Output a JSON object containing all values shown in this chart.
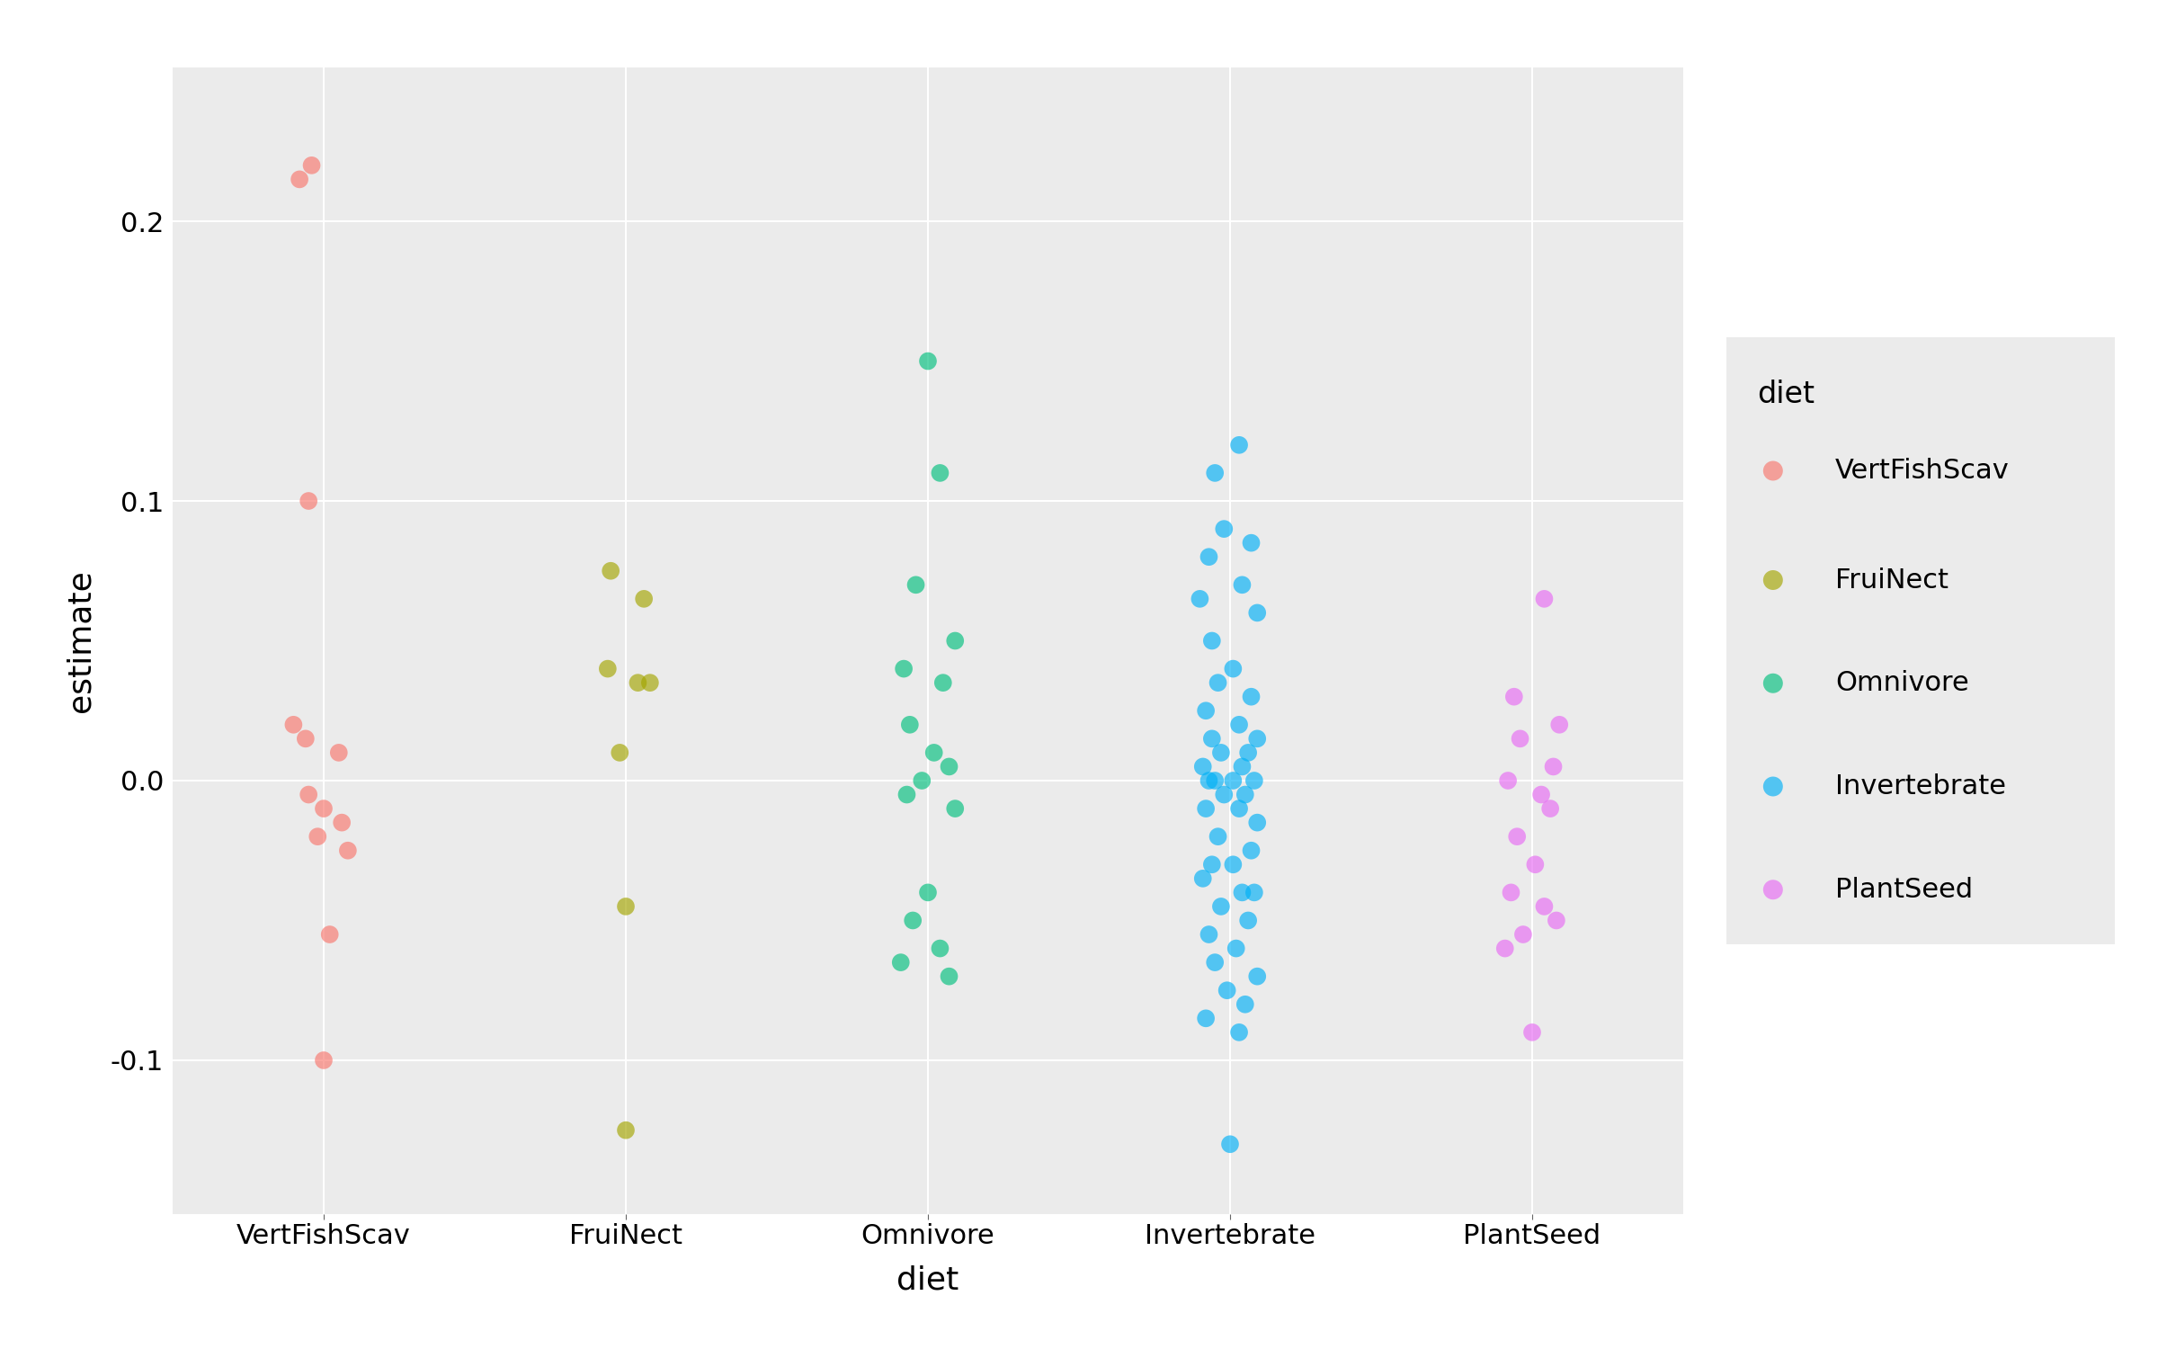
{
  "title": "",
  "xlabel": "diet",
  "ylabel": "estimate",
  "background_color": "#EBEBEB",
  "grid_color": "#FFFFFF",
  "categories": [
    "VertFishScav",
    "FruiNect",
    "Omnivore",
    "Invertebrate",
    "PlantSeed"
  ],
  "colors": {
    "VertFishScav": "#F8766D",
    "FruiNect": "#A3A500",
    "Omnivore": "#00BF7D",
    "Invertebrate": "#00B0F6",
    "PlantSeed": "#E76BF3"
  },
  "alpha": 0.65,
  "marker_size": 200,
  "ylim": [
    -0.155,
    0.255
  ],
  "yticks": [
    -0.1,
    0.0,
    0.1,
    0.2
  ],
  "points": {
    "VertFishScav": [
      0.215,
      0.22,
      0.1,
      0.02,
      0.015,
      0.01,
      -0.005,
      -0.01,
      -0.015,
      -0.02,
      -0.025,
      -0.055,
      -0.1
    ],
    "FruiNect": [
      0.075,
      0.065,
      0.04,
      0.035,
      0.035,
      0.01,
      -0.045,
      -0.125
    ],
    "Omnivore": [
      0.15,
      0.11,
      0.07,
      0.05,
      0.04,
      0.035,
      0.02,
      0.01,
      0.005,
      0.0,
      -0.005,
      -0.01,
      -0.04,
      -0.05,
      -0.06,
      -0.065,
      -0.07
    ],
    "Invertebrate": [
      0.12,
      0.11,
      0.09,
      0.085,
      0.08,
      0.07,
      0.065,
      0.06,
      0.05,
      0.04,
      0.035,
      0.03,
      0.025,
      0.02,
      0.015,
      0.015,
      0.01,
      0.01,
      0.005,
      0.005,
      0.0,
      0.0,
      0.0,
      0.0,
      -0.005,
      -0.005,
      -0.01,
      -0.01,
      -0.015,
      -0.02,
      -0.025,
      -0.03,
      -0.03,
      -0.035,
      -0.04,
      -0.04,
      -0.045,
      -0.05,
      -0.055,
      -0.06,
      -0.065,
      -0.07,
      -0.075,
      -0.08,
      -0.085,
      -0.09,
      -0.13
    ],
    "PlantSeed": [
      0.065,
      0.03,
      0.02,
      0.015,
      0.005,
      0.0,
      -0.005,
      -0.01,
      -0.02,
      -0.03,
      -0.04,
      -0.045,
      -0.05,
      -0.055,
      -0.06,
      -0.09
    ]
  },
  "jitter": {
    "VertFishScav": [
      -0.08,
      -0.04,
      -0.05,
      -0.1,
      -0.06,
      0.05,
      -0.05,
      0.0,
      0.06,
      -0.02,
      0.08,
      0.02,
      0.0
    ],
    "FruiNect": [
      -0.05,
      0.06,
      -0.06,
      0.04,
      0.08,
      -0.02,
      0.0,
      0.0
    ],
    "Omnivore": [
      0.0,
      0.04,
      -0.04,
      0.09,
      -0.08,
      0.05,
      -0.06,
      0.02,
      0.07,
      -0.02,
      -0.07,
      0.09,
      0.0,
      -0.05,
      0.04,
      -0.09,
      0.07
    ],
    "Invertebrate": [
      0.03,
      -0.05,
      -0.02,
      0.07,
      -0.07,
      0.04,
      -0.1,
      0.09,
      -0.06,
      0.01,
      -0.04,
      0.07,
      -0.08,
      0.03,
      0.09,
      -0.06,
      -0.03,
      0.06,
      -0.09,
      0.04,
      -0.07,
      0.01,
      0.08,
      -0.05,
      -0.02,
      0.05,
      -0.08,
      0.03,
      0.09,
      -0.04,
      0.07,
      -0.06,
      0.01,
      -0.09,
      0.04,
      0.08,
      -0.03,
      0.06,
      -0.07,
      0.02,
      -0.05,
      0.09,
      -0.01,
      0.05,
      -0.08,
      0.03,
      0.0
    ],
    "PlantSeed": [
      0.04,
      -0.06,
      0.09,
      -0.04,
      0.07,
      -0.08,
      0.03,
      0.06,
      -0.05,
      0.01,
      -0.07,
      0.04,
      0.08,
      -0.03,
      -0.09,
      0.0
    ]
  },
  "legend_title": "diet",
  "legend_order": [
    "VertFishScav",
    "FruiNect",
    "Omnivore",
    "Invertebrate",
    "PlantSeed"
  ],
  "tick_fontsize": 22,
  "label_fontsize": 26,
  "legend_fontsize": 22,
  "legend_title_fontsize": 24
}
